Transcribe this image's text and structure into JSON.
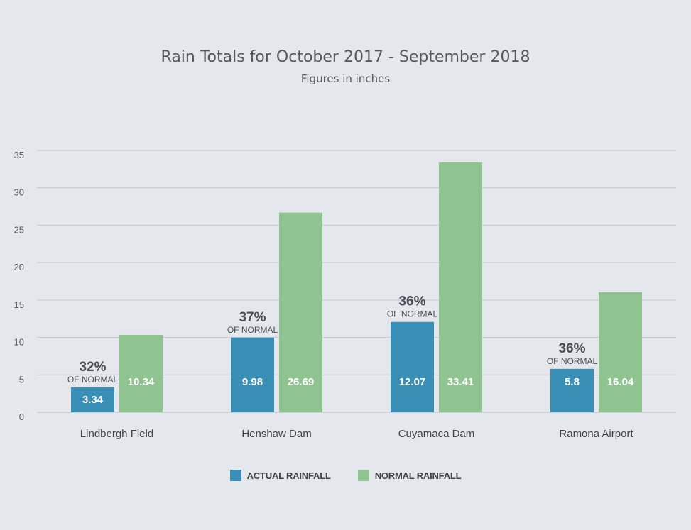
{
  "chart_data": {
    "type": "bar",
    "title": "Rain Totals for October 2017 - September 2018",
    "subtitle": "Figures in inches",
    "categories": [
      "Lindbergh Field",
      "Henshaw Dam",
      "Cuyamaca Dam",
      "Ramona Airport"
    ],
    "series": [
      {
        "name": "ACTUAL RAINFALL",
        "color": "#3a8fb7",
        "values": [
          3.34,
          9.98,
          12.07,
          5.8
        ],
        "labels": [
          "3.34",
          "9.98",
          "12.07",
          "5.8"
        ]
      },
      {
        "name": "NORMAL RAINFALL",
        "color": "#8fc490",
        "values": [
          10.34,
          26.69,
          33.41,
          16.04
        ],
        "labels": [
          "10.34",
          "26.69",
          "33.41",
          "16.04"
        ]
      }
    ],
    "percent_of_normal": [
      "32%",
      "37%",
      "36%",
      "36%"
    ],
    "percent_caption": "OF NORMAL",
    "yticks": [
      0,
      5,
      10,
      15,
      20,
      25,
      30,
      35
    ],
    "ylim": [
      0,
      35
    ],
    "grid": true,
    "legend_position": "bottom"
  }
}
